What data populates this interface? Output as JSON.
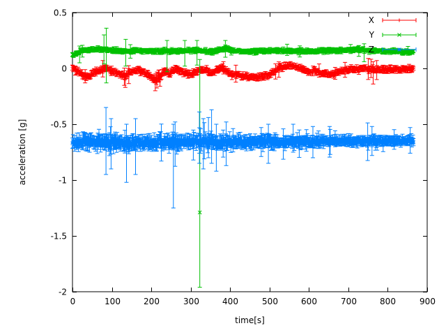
{
  "window": {
    "background": "#ffffff",
    "border_color": "#000000",
    "text_color": "#000000"
  },
  "chart_data": {
    "type": "line",
    "style": "errorbars",
    "title": "",
    "xlabel": "time[s]",
    "ylabel": "acceleration [g]",
    "xlim": [
      0,
      900
    ],
    "ylim": [
      -2,
      0.5
    ],
    "xtick_values": [
      0,
      100,
      200,
      300,
      400,
      500,
      600,
      700,
      800,
      900
    ],
    "xtick_labels": [
      "0",
      "100",
      "200",
      "300",
      "400",
      "500",
      "600",
      "700",
      "800",
      "900"
    ],
    "ytick_values": [
      0.5,
      0,
      -0.5,
      -1,
      -1.5,
      -2
    ],
    "ytick_labels": [
      "0.5",
      "0",
      "-0.5",
      "-1",
      "-1.5",
      "-2"
    ],
    "grid": false,
    "legend_position": "top-right",
    "t_start": 0,
    "t_end": 866,
    "sample_dt": 1.4,
    "seed": 42,
    "series": [
      {
        "name": "X",
        "color": "#ff0000",
        "marker": "plus",
        "jitter": 0.018,
        "err": 0.02,
        "spike_prob": 0.035,
        "anchors": [
          [
            0,
            0.0
          ],
          [
            12,
            -0.02
          ],
          [
            25,
            -0.06
          ],
          [
            38,
            -0.075
          ],
          [
            50,
            -0.055
          ],
          [
            62,
            -0.025
          ],
          [
            75,
            -0.01
          ],
          [
            90,
            -0.012
          ],
          [
            105,
            -0.03
          ],
          [
            120,
            -0.05
          ],
          [
            134,
            -0.07
          ],
          [
            148,
            -0.035
          ],
          [
            165,
            -0.012
          ],
          [
            183,
            -0.04
          ],
          [
            200,
            -0.08
          ],
          [
            212,
            -0.1
          ],
          [
            225,
            -0.06
          ],
          [
            233,
            -0.02
          ],
          [
            246,
            -0.05
          ],
          [
            260,
            -0.01
          ],
          [
            270,
            -0.015
          ],
          [
            283,
            -0.035
          ],
          [
            297,
            -0.06
          ],
          [
            310,
            -0.035
          ],
          [
            322,
            -0.015
          ],
          [
            338,
            -0.012
          ],
          [
            352,
            -0.045
          ],
          [
            366,
            -0.02
          ],
          [
            374,
            0.005
          ],
          [
            386,
            -0.01
          ],
          [
            400,
            -0.045
          ],
          [
            420,
            -0.06
          ],
          [
            440,
            -0.07
          ],
          [
            462,
            -0.085
          ],
          [
            486,
            -0.07
          ],
          [
            508,
            -0.04
          ],
          [
            525,
            0.005
          ],
          [
            545,
            0.02
          ],
          [
            562,
            0.025
          ],
          [
            580,
            0.0
          ],
          [
            598,
            -0.035
          ],
          [
            615,
            -0.02
          ],
          [
            632,
            -0.04
          ],
          [
            652,
            -0.055
          ],
          [
            672,
            -0.04
          ],
          [
            688,
            -0.015
          ],
          [
            705,
            -0.002
          ],
          [
            722,
            -0.012
          ],
          [
            740,
            -0.002
          ],
          [
            756,
            -0.01
          ],
          [
            775,
            -0.015
          ],
          [
            795,
            -0.008
          ],
          [
            815,
            -0.01
          ],
          [
            835,
            -0.008
          ],
          [
            855,
            -0.005
          ],
          [
            866,
            -0.003
          ]
        ],
        "outliers": [
          {
            "t": 134,
            "y": -0.1,
            "lo": -0.17,
            "hi": -0.04
          },
          {
            "t": 210,
            "y": -0.12,
            "lo": -0.2,
            "hi": -0.05
          },
          {
            "t": 222,
            "y": -0.1,
            "lo": -0.16,
            "hi": -0.05
          },
          {
            "t": 383,
            "y": 0.02,
            "lo": -0.05,
            "hi": 0.06
          },
          {
            "t": 763,
            "y": -0.02,
            "lo": -0.14,
            "hi": 0.06
          },
          {
            "t": 772,
            "y": 0.0,
            "lo": -0.1,
            "hi": 0.07
          }
        ]
      },
      {
        "name": "Y",
        "color": "#00c000",
        "marker": "cross",
        "jitter": 0.012,
        "err": 0.016,
        "spike_prob": 0.02,
        "anchors": [
          [
            0,
            0.12
          ],
          [
            10,
            0.135
          ],
          [
            22,
            0.155
          ],
          [
            40,
            0.165
          ],
          [
            60,
            0.17
          ],
          [
            85,
            0.168
          ],
          [
            110,
            0.158
          ],
          [
            135,
            0.152
          ],
          [
            160,
            0.158
          ],
          [
            185,
            0.162
          ],
          [
            210,
            0.152
          ],
          [
            235,
            0.158
          ],
          [
            260,
            0.152
          ],
          [
            285,
            0.158
          ],
          [
            310,
            0.162
          ],
          [
            335,
            0.155
          ],
          [
            360,
            0.152
          ],
          [
            378,
            0.168
          ],
          [
            392,
            0.175
          ],
          [
            405,
            0.158
          ],
          [
            430,
            0.152
          ],
          [
            455,
            0.15
          ],
          [
            480,
            0.153
          ],
          [
            505,
            0.157
          ],
          [
            530,
            0.16
          ],
          [
            555,
            0.155
          ],
          [
            580,
            0.151
          ],
          [
            605,
            0.153
          ],
          [
            630,
            0.155
          ],
          [
            655,
            0.158
          ],
          [
            680,
            0.165
          ],
          [
            700,
            0.17
          ],
          [
            718,
            0.17
          ],
          [
            736,
            0.165
          ],
          [
            755,
            0.16
          ],
          [
            775,
            0.157
          ],
          [
            800,
            0.154
          ],
          [
            825,
            0.151
          ],
          [
            850,
            0.15
          ],
          [
            866,
            0.15
          ]
        ],
        "outliers": [
          {
            "t": 18,
            "y": 0.13,
            "lo": 0.05,
            "hi": 0.2
          },
          {
            "t": 80,
            "y": 0.17,
            "lo": 0.04,
            "hi": 0.3
          },
          {
            "t": 86,
            "y": 0.17,
            "lo": -0.13,
            "hi": 0.36
          },
          {
            "t": 135,
            "y": 0.15,
            "lo": 0.02,
            "hi": 0.26
          },
          {
            "t": 240,
            "y": 0.15,
            "lo": -0.03,
            "hi": 0.25
          },
          {
            "t": 285,
            "y": 0.16,
            "lo": 0.02,
            "hi": 0.25
          },
          {
            "t": 316,
            "y": 0.16,
            "lo": 0.03,
            "hi": 0.25
          },
          {
            "t": 323,
            "y": -1.29,
            "lo": -1.96,
            "hi": 0.08
          },
          {
            "t": 388,
            "y": 0.2,
            "lo": 0.1,
            "hi": 0.25
          },
          {
            "t": 740,
            "y": 0.16,
            "lo": 0.06,
            "hi": 0.22
          }
        ]
      },
      {
        "name": "Z",
        "color": "#0080ff",
        "marker": "star",
        "jitter": 0.034,
        "err": 0.048,
        "spike_prob": 0.05,
        "spread_ref": 0.065,
        "spread": [
          [
            0,
            0.065
          ],
          [
            90,
            0.075
          ],
          [
            150,
            0.07
          ],
          [
            250,
            0.068
          ],
          [
            350,
            0.066
          ],
          [
            450,
            0.06
          ],
          [
            550,
            0.055
          ],
          [
            650,
            0.05
          ],
          [
            750,
            0.046
          ],
          [
            866,
            0.042
          ]
        ],
        "anchors": [
          [
            0,
            -0.66
          ],
          [
            40,
            -0.663
          ],
          [
            85,
            -0.655
          ],
          [
            120,
            -0.662
          ],
          [
            137,
            -0.67
          ],
          [
            165,
            -0.66
          ],
          [
            200,
            -0.664
          ],
          [
            240,
            -0.658
          ],
          [
            280,
            -0.662
          ],
          [
            320,
            -0.658
          ],
          [
            360,
            -0.655
          ],
          [
            400,
            -0.662
          ],
          [
            440,
            -0.658
          ],
          [
            480,
            -0.657
          ],
          [
            520,
            -0.658
          ],
          [
            560,
            -0.655
          ],
          [
            600,
            -0.653
          ],
          [
            640,
            -0.652
          ],
          [
            680,
            -0.65
          ],
          [
            720,
            -0.65
          ],
          [
            760,
            -0.651
          ],
          [
            800,
            -0.65
          ],
          [
            840,
            -0.649
          ],
          [
            866,
            -0.649
          ]
        ],
        "outliers": [
          {
            "t": 85,
            "y": -0.62,
            "lo": -0.95,
            "hi": -0.35
          },
          {
            "t": 98,
            "y": -0.66,
            "lo": -0.9,
            "hi": -0.45
          },
          {
            "t": 137,
            "y": -0.68,
            "lo": -1.02,
            "hi": -0.5
          },
          {
            "t": 160,
            "y": -0.67,
            "lo": -0.95,
            "hi": -0.45
          },
          {
            "t": 256,
            "y": -0.68,
            "lo": -1.25,
            "hi": -0.5
          },
          {
            "t": 322,
            "y": -0.6,
            "lo": -0.85,
            "hi": -0.39
          },
          {
            "t": 332,
            "y": -0.66,
            "lo": -0.9,
            "hi": -0.45
          },
          {
            "t": 345,
            "y": -0.62,
            "lo": -0.8,
            "hi": -0.44
          },
          {
            "t": 353,
            "y": -0.63,
            "lo": -0.85,
            "hi": -0.37
          },
          {
            "t": 365,
            "y": -0.68,
            "lo": -0.92,
            "hi": -0.5
          },
          {
            "t": 390,
            "y": -0.66,
            "lo": -0.87,
            "hi": -0.48
          },
          {
            "t": 497,
            "y": -0.66,
            "lo": -0.85,
            "hi": -0.5
          },
          {
            "t": 560,
            "y": -0.63,
            "lo": -0.75,
            "hi": -0.5
          },
          {
            "t": 610,
            "y": -0.66,
            "lo": -0.8,
            "hi": -0.52
          },
          {
            "t": 760,
            "y": -0.65,
            "lo": -0.78,
            "hi": -0.52
          }
        ]
      }
    ]
  }
}
